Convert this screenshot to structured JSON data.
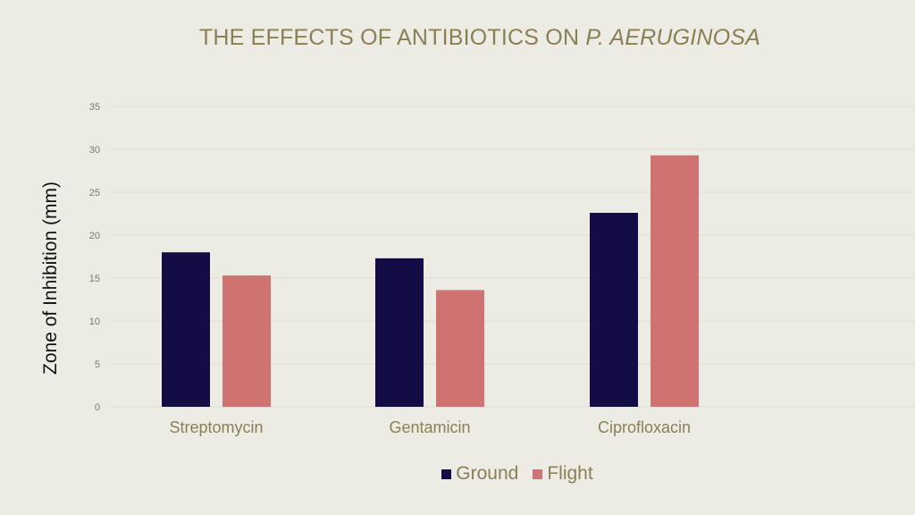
{
  "chart_data": {
    "type": "bar",
    "title_main": "THE EFFECTS OF ANTIBIOTICS ON ",
    "title_italic": "P. AERUGINOSA",
    "ylabel": "Zone of Inhibition (mm)",
    "xlabel": "",
    "ylim": [
      0,
      35
    ],
    "yticks": [
      0,
      5,
      10,
      15,
      20,
      25,
      30,
      35
    ],
    "grid": true,
    "legend_position": "bottom",
    "categories": [
      "Streptomycin",
      "Gentamicin",
      "Ciprofloxacin"
    ],
    "series": [
      {
        "name": "Ground",
        "color": "#140C44",
        "values": [
          18.0,
          17.3,
          22.6
        ]
      },
      {
        "name": "Flight",
        "color": "#CE7272",
        "values": [
          15.3,
          13.6,
          29.3
        ]
      }
    ]
  }
}
